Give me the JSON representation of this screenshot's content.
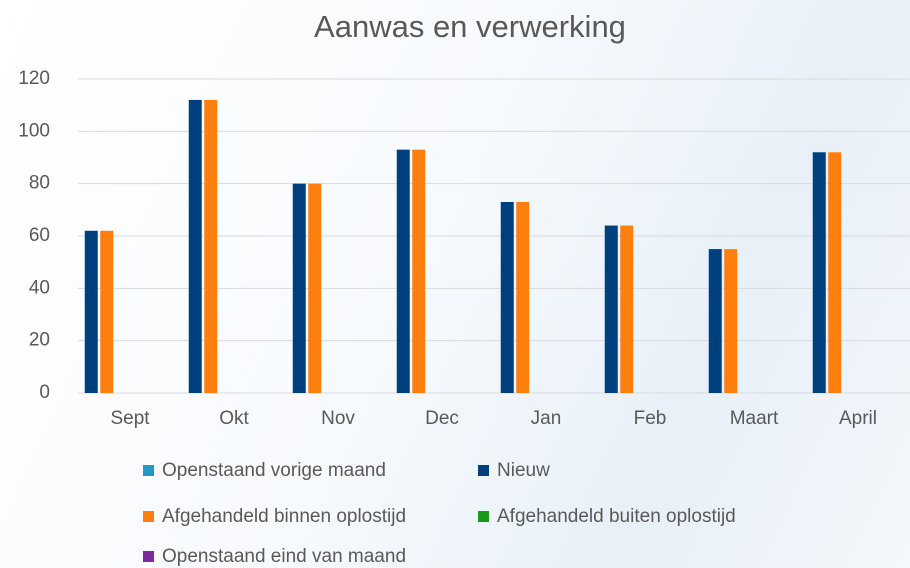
{
  "chart_data": {
    "type": "bar",
    "title": "Aanwas en verwerking",
    "categories": [
      "Sept",
      "Okt",
      "Nov",
      "Dec",
      "Jan",
      "Feb",
      "Maart",
      "April"
    ],
    "series": [
      {
        "name": "Openstaand vorige maand",
        "color": "#1f9bc4",
        "values": [
          0,
          0,
          0,
          0,
          0,
          0,
          0,
          0
        ]
      },
      {
        "name": "Nieuw",
        "color": "#003f7d",
        "values": [
          62,
          112,
          80,
          93,
          73,
          64,
          55,
          92
        ]
      },
      {
        "name": "Afgehandeld binnen oplostijd",
        "color": "#ff7f0e",
        "values": [
          62,
          112,
          80,
          93,
          73,
          64,
          55,
          92
        ]
      },
      {
        "name": "Afgehandeld buiten oplostijd",
        "color": "#1a9a1a",
        "values": [
          0,
          0,
          0,
          0,
          0,
          0,
          0,
          0
        ]
      },
      {
        "name": "Openstaand eind van maand",
        "color": "#7f2a9f",
        "values": [
          0,
          0,
          0,
          0,
          0,
          0,
          0,
          0
        ]
      }
    ],
    "ylim": [
      0,
      120
    ],
    "yticks": [
      0,
      20,
      40,
      60,
      80,
      100,
      120
    ],
    "grid": true,
    "legend": "bottom"
  }
}
